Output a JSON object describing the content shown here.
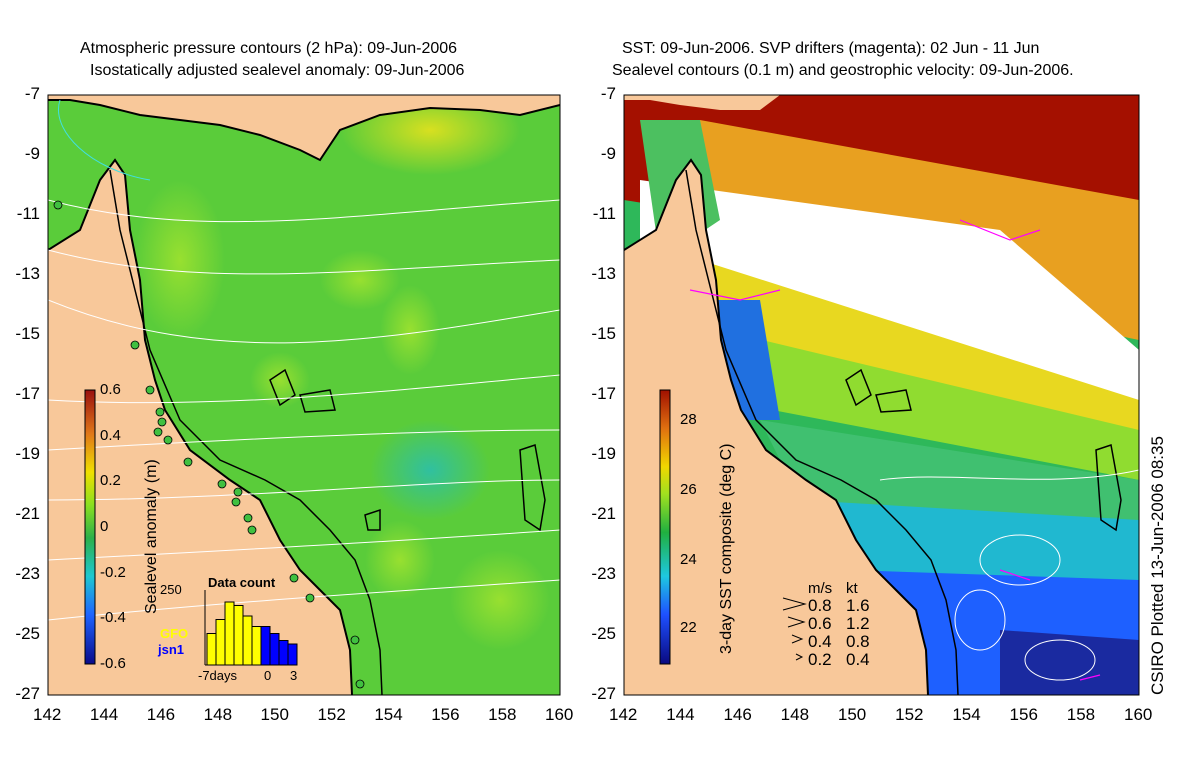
{
  "left": {
    "title_line1": "Atmospheric pressure contours (2 hPa): 09-Jun-2006",
    "title_line2": "Isostatically adjusted sealevel anomaly: 09-Jun-2006",
    "colorbar_label": "Sealevel anomaly (m)",
    "colorbar_ticks": [
      "0.6",
      "0.4",
      "0.2",
      "0",
      "-0.2",
      "-0.4",
      "-0.6"
    ],
    "inset": {
      "title": "Data count",
      "ymax": "250",
      "legend": [
        "GFO",
        "jsn1"
      ],
      "legend_colors": [
        "#ffff00",
        "#0000ff"
      ],
      "xlabels": [
        "-7days",
        "0",
        "3"
      ],
      "gfo_counts": [
        0.45,
        0.65,
        0.9,
        0.85,
        0.7,
        0.55,
        0,
        0,
        0,
        0
      ],
      "jsn1_counts": [
        0,
        0,
        0,
        0,
        0,
        0,
        0.55,
        0.45,
        0.35,
        0.3
      ]
    }
  },
  "right": {
    "title_line1": "SST: 09-Jun-2006. SVP drifters (magenta): 02 Jun - 11 Jun",
    "title_line2": "Sealevel contours (0.1 m) and geostrophic velocity: 09-Jun-2006.",
    "colorbar_label": "3-day SST composite (deg C)",
    "colorbar_ticks": [
      "28",
      "26",
      "24",
      "22"
    ],
    "velocity_key": {
      "header_ms": "m/s",
      "header_kt": "kt",
      "rows": [
        {
          "ms": "0.8",
          "kt": "1.6"
        },
        {
          "ms": "0.6",
          "kt": "1.2"
        },
        {
          "ms": "0.4",
          "kt": "0.8"
        },
        {
          "ms": "0.2",
          "kt": "0.4"
        }
      ]
    },
    "credit": "CSIRO Plotted 13-Jun-2006 08:35"
  },
  "axes": {
    "lat_ticks": [
      "-7",
      "-9",
      "-11",
      "-13",
      "-15",
      "-17",
      "-19",
      "-21",
      "-23",
      "-25",
      "-27"
    ],
    "lon_ticks": [
      "142",
      "144",
      "146",
      "148",
      "150",
      "152",
      "154",
      "156",
      "158",
      "160"
    ],
    "lon_range": [
      142,
      160
    ],
    "lat_range": [
      -27,
      -7
    ]
  },
  "colors": {
    "land": "#f8c89a",
    "sla_field": "#5ccc3c",
    "sst_field": "#2eb85a"
  }
}
